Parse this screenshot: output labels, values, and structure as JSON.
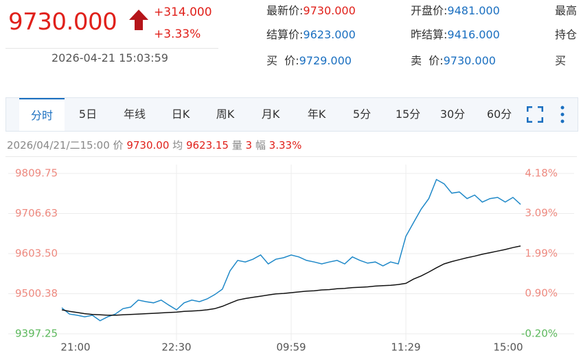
{
  "quote": {
    "price": "9730.000",
    "change": "+314.000",
    "percent": "+3.33%",
    "time": "2026-04-21 15:03:59"
  },
  "fields": [
    [
      {
        "label": "最新价:",
        "value": "9730.000"
      },
      {
        "label": "开盘价:",
        "value": "9481.000"
      },
      {
        "label": "最高"
      }
    ],
    [
      {
        "label": "结算价:",
        "value": "9623.000"
      },
      {
        "label": "昨结算:",
        "value": "9416.000"
      },
      {
        "label": "持仓"
      }
    ],
    [
      {
        "label": "买  价:",
        "value": "9729.000"
      },
      {
        "label": "卖  价:",
        "value": "9730.000"
      },
      {
        "label": "买"
      }
    ]
  ],
  "tabs": [
    "分时",
    "5日",
    "年线",
    "日K",
    "周K",
    "月K",
    "年K",
    "5分",
    "15分",
    "30分",
    "60分"
  ],
  "info": {
    "datetime": "2026/04/21/二15:00",
    "price_label": "价",
    "price": "9730.00",
    "avg_label": "均",
    "avg": "9623.15",
    "volume_label": "量",
    "volume": "3",
    "range_label": "幅",
    "range": "3.33%"
  },
  "chart_data": {
    "type": "line",
    "xticks": [
      "21:00",
      "22:30",
      "09:59",
      "11:29",
      "15:00"
    ],
    "ylim": [
      9397.25,
      9809.75
    ],
    "yticks": [
      {
        "value": 9397.25,
        "label": "9397.25"
      },
      {
        "value": 9500.38,
        "label": "9500.38"
      },
      {
        "value": 9603.5,
        "label": "9603.50"
      },
      {
        "value": 9706.63,
        "label": "9706.63"
      },
      {
        "value": 9809.75,
        "label": "9809.75"
      }
    ],
    "y2lim": [
      -0.2,
      4.18
    ],
    "y2ticks": [
      {
        "value": -0.2,
        "label": "-0.20%"
      },
      {
        "value": 0.9,
        "label": "0.90%"
      },
      {
        "value": 1.99,
        "label": "1.99%"
      },
      {
        "value": 3.09,
        "label": "3.09%"
      },
      {
        "value": 4.18,
        "label": "4.18%"
      }
    ],
    "grid": true,
    "series": [
      {
        "color": "#1e88c8",
        "values": [
          9464,
          9448,
          9445,
          9441,
          9445,
          9431,
          9441,
          9448,
          9462,
          9466,
          9484,
          9480,
          9477,
          9484,
          9471,
          9459,
          9477,
          9484,
          9480,
          9487,
          9498,
          9512,
          9559,
          9586,
          9582,
          9589,
          9600,
          9577,
          9589,
          9593,
          9600,
          9595,
          9586,
          9582,
          9577,
          9582,
          9586,
          9577,
          9595,
          9586,
          9579,
          9582,
          9572,
          9582,
          9577,
          9648,
          9683,
          9718,
          9745,
          9794,
          9783,
          9759,
          9762,
          9745,
          9754,
          9736,
          9745,
          9748,
          9736,
          9748,
          9730
        ]
      },
      {
        "color": "#111111",
        "values": [
          9459,
          9455,
          9452,
          9449,
          9447,
          9446,
          9445,
          9445,
          9446,
          9447,
          9448,
          9449,
          9450,
          9451,
          9452,
          9453,
          9455,
          9456,
          9457,
          9459,
          9462,
          9468,
          9476,
          9484,
          9488,
          9491,
          9494,
          9497,
          9500,
          9501,
          9503,
          9505,
          9507,
          9508,
          9510,
          9511,
          9513,
          9514,
          9516,
          9517,
          9518,
          9520,
          9521,
          9522,
          9524,
          9527,
          9538,
          9546,
          9556,
          9567,
          9577,
          9583,
          9588,
          9593,
          9597,
          9602,
          9606,
          9610,
          9614,
          9619,
          9623
        ]
      }
    ]
  }
}
